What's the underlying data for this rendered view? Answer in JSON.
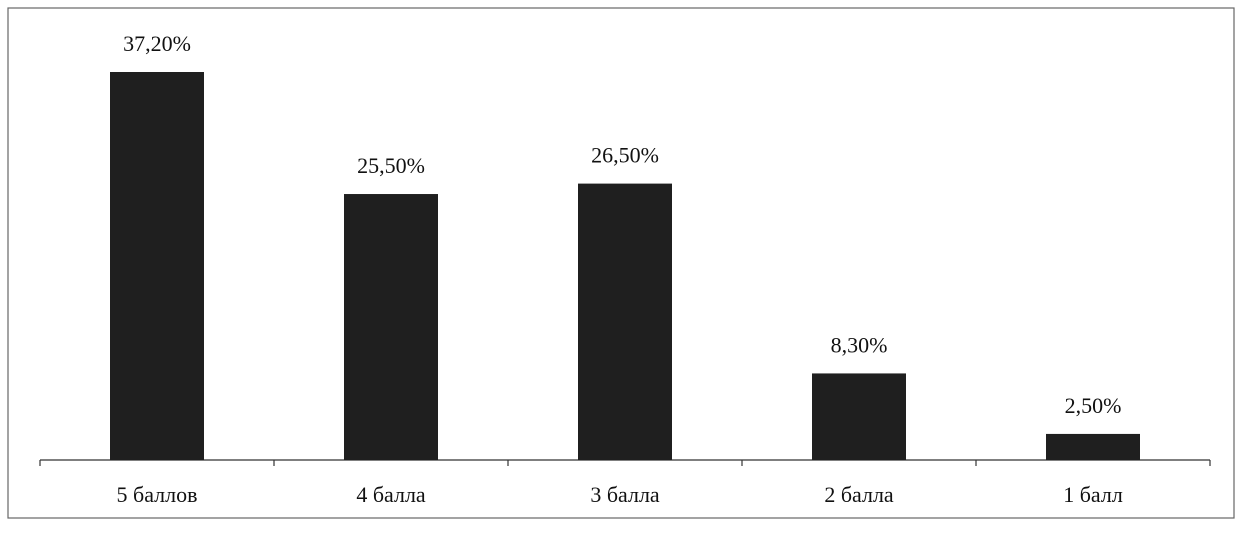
{
  "chart_data": {
    "type": "bar",
    "categories": [
      "5 баллов",
      "4 балла",
      "3 балла",
      "2 балла",
      "1 балл"
    ],
    "values": [
      37.2,
      25.5,
      26.5,
      8.3,
      2.5
    ],
    "value_labels": [
      "37,20%",
      "25,50%",
      "26,50%",
      "8,30%",
      "2,50%"
    ],
    "color": "#1f1f1f"
  }
}
